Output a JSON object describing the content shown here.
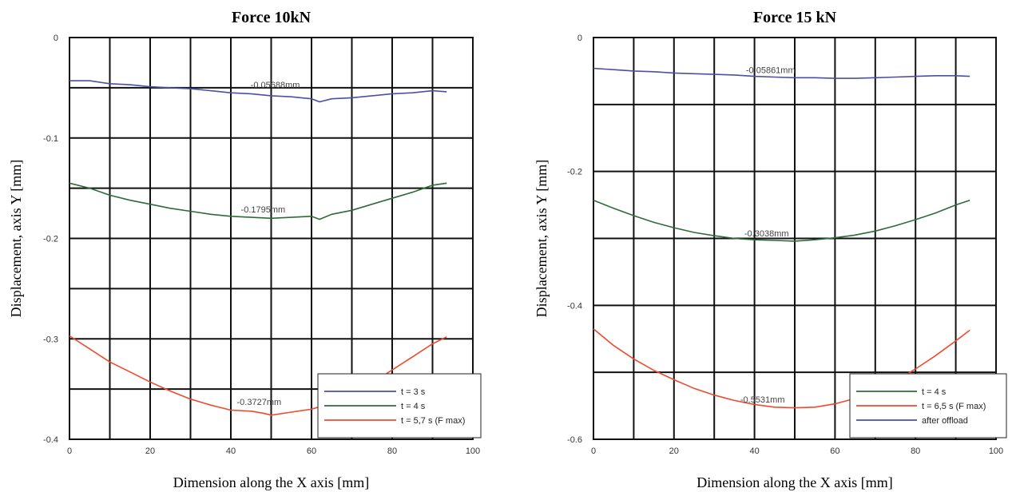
{
  "chart_data": [
    {
      "type": "line",
      "title": "Force 10kN",
      "xlabel": "Dimension along the X axis [mm]",
      "ylabel": "Displacement, axis Y [mm]",
      "xlim": [
        0,
        100
      ],
      "ylim": [
        -0.4,
        0
      ],
      "x_ticks": [
        "0",
        "20",
        "40",
        "60",
        "80",
        "100"
      ],
      "y_ticks": [
        "0",
        "-0.1",
        "-0.2",
        "-0.3",
        "-0.4"
      ],
      "grid": true,
      "legend_position": "bottom-right",
      "series": [
        {
          "name": "t = 3 s",
          "color": "#4a4fa8",
          "x": [
            0,
            5,
            10,
            15,
            20,
            25,
            30,
            35,
            40,
            45,
            50,
            55,
            60,
            62,
            65,
            70,
            75,
            80,
            85,
            90,
            93.5
          ],
          "y": [
            -0.043,
            -0.043,
            -0.046,
            -0.047,
            -0.049,
            -0.05,
            -0.051,
            -0.053,
            -0.055,
            -0.056,
            -0.058,
            -0.059,
            -0.061,
            -0.064,
            -0.061,
            -0.06,
            -0.058,
            -0.056,
            -0.055,
            -0.053,
            -0.054
          ]
        },
        {
          "name": "t = 4 s",
          "color": "#2e6b38",
          "x": [
            0,
            5,
            10,
            15,
            20,
            25,
            30,
            35,
            40,
            45,
            50,
            55,
            60,
            62,
            65,
            70,
            75,
            80,
            85,
            90,
            93.5
          ],
          "y": [
            -0.145,
            -0.15,
            -0.157,
            -0.162,
            -0.166,
            -0.17,
            -0.173,
            -0.176,
            -0.178,
            -0.179,
            -0.18,
            -0.179,
            -0.178,
            -0.181,
            -0.176,
            -0.172,
            -0.166,
            -0.16,
            -0.154,
            -0.147,
            -0.145
          ]
        },
        {
          "name": "t = 5,7 s (F max)",
          "color": "#ef4a2e",
          "x": [
            0,
            5,
            10,
            15,
            20,
            25,
            30,
            35,
            40,
            45,
            48,
            50,
            55,
            60,
            65,
            70,
            75,
            80,
            85,
            90,
            93.5
          ],
          "y": [
            -0.297,
            -0.31,
            -0.323,
            -0.333,
            -0.343,
            -0.352,
            -0.36,
            -0.366,
            -0.371,
            -0.372,
            -0.374,
            -0.376,
            -0.373,
            -0.37,
            -0.364,
            -0.355,
            -0.344,
            -0.331,
            -0.318,
            -0.305,
            -0.298
          ]
        }
      ],
      "annotations": [
        {
          "text": "-0.05688mm",
          "x": 51,
          "y": -0.05
        },
        {
          "text": "-0.1795mm",
          "x": 48,
          "y": -0.174
        },
        {
          "text": "-0.3727mm",
          "x": 47,
          "y": -0.366
        }
      ]
    },
    {
      "type": "line",
      "title": "Force 15 kN",
      "xlabel": "Dimension along the X axis [mm]",
      "ylabel": "Displacement, axis Y [mm]",
      "xlim": [
        0,
        100
      ],
      "ylim": [
        -0.6,
        0
      ],
      "x_ticks": [
        "0",
        "20",
        "40",
        "60",
        "80",
        "100"
      ],
      "y_ticks": [
        "0",
        "-0.2",
        "-0.4",
        "-0.6"
      ],
      "grid": true,
      "legend_position": "bottom-right",
      "series": [
        {
          "name": "t = 4 s",
          "color": "#2e6b38",
          "x": [
            0,
            5,
            10,
            15,
            20,
            25,
            30,
            35,
            40,
            45,
            50,
            55,
            60,
            65,
            70,
            75,
            80,
            85,
            90,
            93.5
          ],
          "y": [
            -0.243,
            -0.255,
            -0.266,
            -0.276,
            -0.284,
            -0.291,
            -0.296,
            -0.3,
            -0.302,
            -0.303,
            -0.304,
            -0.302,
            -0.299,
            -0.295,
            -0.289,
            -0.281,
            -0.272,
            -0.262,
            -0.25,
            -0.243
          ]
        },
        {
          "name": "t = 6,5 s (F max)",
          "color": "#ef4a2e",
          "x": [
            0,
            5,
            10,
            15,
            20,
            25,
            30,
            35,
            40,
            45,
            50,
            55,
            60,
            65,
            70,
            75,
            80,
            85,
            90,
            93.5
          ],
          "y": [
            -0.435,
            -0.46,
            -0.48,
            -0.497,
            -0.511,
            -0.524,
            -0.534,
            -0.542,
            -0.548,
            -0.552,
            -0.553,
            -0.552,
            -0.547,
            -0.539,
            -0.528,
            -0.513,
            -0.495,
            -0.475,
            -0.453,
            -0.437
          ]
        },
        {
          "name": "after offload",
          "color": "#4a4fa8",
          "x": [
            0,
            5,
            10,
            15,
            20,
            25,
            30,
            35,
            40,
            45,
            50,
            55,
            60,
            65,
            70,
            75,
            80,
            85,
            90,
            93.5
          ],
          "y": [
            -0.046,
            -0.048,
            -0.05,
            -0.051,
            -0.053,
            -0.054,
            -0.055,
            -0.056,
            -0.058,
            -0.059,
            -0.06,
            -0.06,
            -0.061,
            -0.061,
            -0.06,
            -0.059,
            -0.058,
            -0.057,
            -0.057,
            -0.058
          ]
        }
      ],
      "annotations": [
        {
          "text": "-0.05861mm",
          "x": 44,
          "y": -0.053
        },
        {
          "text": "-0.3038mm",
          "x": 43,
          "y": -0.297
        },
        {
          "text": "-0.5531mm",
          "x": 42,
          "y": -0.545
        }
      ]
    }
  ]
}
